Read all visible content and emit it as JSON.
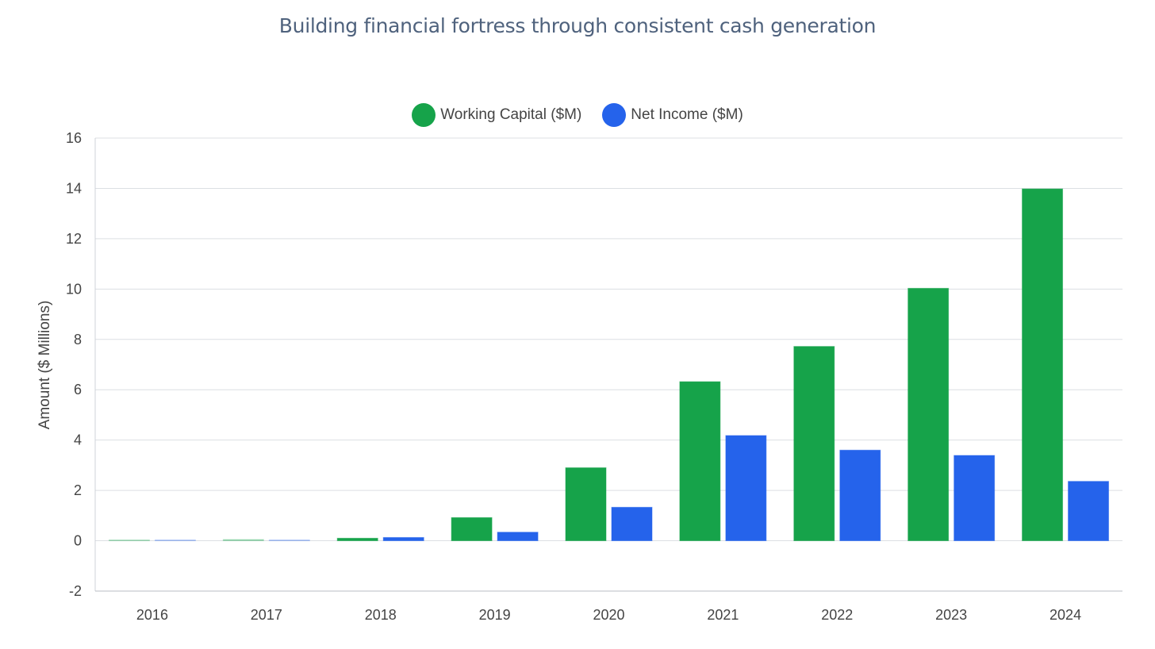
{
  "chart_data": {
    "type": "bar",
    "title": "Building financial fortress through consistent cash generation",
    "xlabel": "",
    "ylabel": "Amount ($ Millions)",
    "categories": [
      "2016",
      "2017",
      "2018",
      "2019",
      "2020",
      "2021",
      "2022",
      "2023",
      "2024"
    ],
    "series": [
      {
        "name": "Working Capital ($M)",
        "color": "#16a34a",
        "values": [
          0.01,
          0.05,
          0.1,
          0.92,
          2.9,
          6.32,
          7.72,
          10.03,
          13.98
        ]
      },
      {
        "name": "Net Income ($M)",
        "color": "#2563eb",
        "values": [
          0.0,
          0.02,
          0.13,
          0.34,
          1.33,
          4.18,
          3.6,
          3.39,
          2.36
        ]
      }
    ],
    "ylim": [
      -2,
      16
    ],
    "yticks": [
      "16",
      "14",
      "12",
      "10",
      "8",
      "6",
      "4",
      "2",
      "0",
      "-2"
    ],
    "ytick_values": [
      16,
      14,
      12,
      10,
      8,
      6,
      4,
      2,
      0,
      -2
    ],
    "grid": true,
    "legend_position": "top-center"
  }
}
